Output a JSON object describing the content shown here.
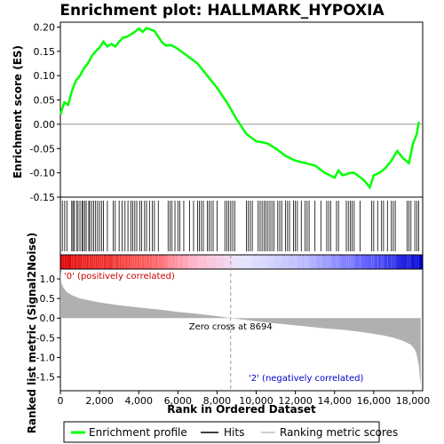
{
  "chart_data": [
    {
      "type": "line",
      "title": "Enrichment plot: HALLMARK_HYPOXIA",
      "ylabel": "Enrichment score (ES)",
      "xlim": [
        0,
        18500
      ],
      "ylim": [
        -0.15,
        0.21
      ],
      "yticks": [
        "0.20",
        "0.15",
        "0.10",
        "0.05",
        "0.00",
        "-0.05",
        "-0.10",
        "-0.15"
      ],
      "ytick_values": [
        0.2,
        0.15,
        0.1,
        0.05,
        0.0,
        -0.05,
        -0.1,
        -0.15
      ],
      "series": [
        {
          "name": "Enrichment profile",
          "color": "#00ff00",
          "x": [
            0,
            200,
            400,
            600,
            800,
            1000,
            1200,
            1400,
            1600,
            1800,
            2000,
            2200,
            2400,
            2600,
            2800,
            3000,
            3200,
            3400,
            3600,
            3800,
            4000,
            4200,
            4400,
            4600,
            4800,
            5000,
            5200,
            5400,
            5600,
            5800,
            6000,
            6500,
            7000,
            7500,
            8000,
            8500,
            9000,
            9500,
            10000,
            10300,
            10600,
            11000,
            11500,
            12000,
            12500,
            13000,
            13500,
            14000,
            14200,
            14400,
            14600,
            14800,
            15000,
            15500,
            15800,
            16000,
            16300,
            16600,
            16900,
            17200,
            17500,
            17800,
            18000,
            18200,
            18300
          ],
          "y": [
            0.02,
            0.045,
            0.04,
            0.07,
            0.09,
            0.1,
            0.115,
            0.125,
            0.14,
            0.15,
            0.158,
            0.17,
            0.16,
            0.165,
            0.16,
            0.17,
            0.178,
            0.18,
            0.185,
            0.19,
            0.197,
            0.19,
            0.198,
            0.195,
            0.192,
            0.18,
            0.168,
            0.162,
            0.163,
            0.16,
            0.155,
            0.14,
            0.125,
            0.1,
            0.075,
            0.045,
            0.01,
            -0.02,
            -0.035,
            -0.037,
            -0.04,
            -0.05,
            -0.065,
            -0.075,
            -0.08,
            -0.085,
            -0.1,
            -0.11,
            -0.095,
            -0.105,
            -0.103,
            -0.1,
            -0.1,
            -0.115,
            -0.13,
            -0.105,
            -0.1,
            -0.09,
            -0.075,
            -0.055,
            -0.07,
            -0.08,
            -0.04,
            -0.02,
            0.005
          ]
        }
      ]
    },
    {
      "type": "scatter",
      "name": "Hits",
      "hits": [
        100,
        220,
        330,
        580,
        640,
        700,
        820,
        900,
        1000,
        1100,
        1150,
        1250,
        1320,
        1450,
        1500,
        1600,
        1700,
        1800,
        1900,
        2000,
        2100,
        2200,
        2400,
        2700,
        2800,
        3000,
        3150,
        3300,
        3450,
        3600,
        3700,
        3800,
        3900,
        4050,
        4150,
        4300,
        4400,
        4550,
        4700,
        4800,
        5000,
        5500,
        5600,
        5700,
        5850,
        6000,
        6100,
        6300,
        6600,
        6800,
        7000,
        7100,
        7200,
        7300,
        7500,
        7600,
        7700,
        7800,
        8000,
        8400,
        8500,
        8600,
        8700,
        8800,
        8900,
        9500,
        9600,
        9700,
        9800,
        10100,
        10200,
        10300,
        10400,
        10500,
        10600,
        10700,
        10800,
        10900,
        11100,
        11200,
        11300,
        11500,
        11600,
        11700,
        11900,
        12000,
        12100,
        12300,
        12500,
        12600,
        12700,
        13000,
        13300,
        13600,
        13700,
        13800,
        14100,
        14200,
        14600,
        14700,
        14800,
        14900,
        15000,
        15300,
        15900,
        16000,
        16200,
        16400,
        16500,
        16700,
        16900,
        17000,
        17100,
        17700,
        17800,
        17900,
        18100,
        18200,
        18300
      ]
    },
    {
      "type": "area",
      "ylabel": "Ranked list metric (Signal2Noise)",
      "xlabel": "Rank in Ordered Dataset",
      "xlim": [
        0,
        18500
      ],
      "ylim": [
        -1.85,
        1.25
      ],
      "yticks": [
        "1.0",
        "0.5",
        "0.0",
        "-0.5",
        "-1.0",
        "-1.5"
      ],
      "ytick_values": [
        1.0,
        0.5,
        0.0,
        -0.5,
        -1.0,
        -1.5
      ],
      "xticks": [
        "0",
        "2,000",
        "4,000",
        "6,000",
        "8,000",
        "10,000",
        "12,000",
        "14,000",
        "16,000",
        "18,000"
      ],
      "xtick_values": [
        0,
        2000,
        4000,
        6000,
        8000,
        10000,
        12000,
        14000,
        16000,
        18000
      ],
      "series": [
        {
          "name": "Ranking metric scores",
          "color": "#b0b0b0",
          "x": [
            0,
            50,
            150,
            300,
            600,
            1000,
            2000,
            3000,
            4000,
            5000,
            6000,
            7000,
            8000,
            8694,
            9500,
            10500,
            11500,
            12500,
            13500,
            14500,
            15500,
            16500,
            17000,
            17500,
            17900,
            18100,
            18200,
            18300,
            18350,
            18400
          ],
          "y": [
            1.2,
            0.9,
            0.78,
            0.68,
            0.58,
            0.5,
            0.4,
            0.33,
            0.27,
            0.22,
            0.16,
            0.11,
            0.05,
            0.0,
            -0.05,
            -0.11,
            -0.16,
            -0.21,
            -0.26,
            -0.3,
            -0.36,
            -0.44,
            -0.5,
            -0.58,
            -0.68,
            -0.8,
            -0.95,
            -1.2,
            -1.5,
            -1.7
          ]
        }
      ],
      "annotations": {
        "zero_cross": "Zero cross at 8694",
        "zero_cross_x": 8694,
        "positive": "'0' (positively correlated)",
        "negative": "'2' (negatively correlated)"
      }
    }
  ],
  "legend": {
    "items": [
      "Enrichment profile",
      "Hits",
      "Ranking metric scores"
    ],
    "colors": [
      "#00ff00",
      "#000000",
      "#c0c0c0"
    ]
  }
}
